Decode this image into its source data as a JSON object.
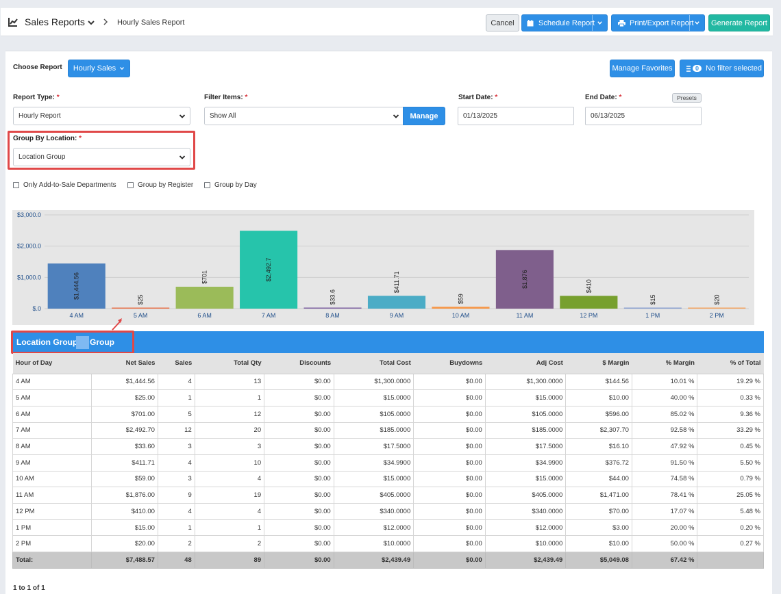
{
  "header": {
    "title": "Sales Reports",
    "breadcrumb": "Hourly Sales Report",
    "cancel_label": "Cancel",
    "schedule_label": "Schedule Report",
    "print_label": "Print/Export Report",
    "generate_label": "Generate Report"
  },
  "toolbar": {
    "choose_label": "Choose Report",
    "report_button": "Hourly Sales",
    "favorites_label": "Manage Favorites",
    "filter_count": "0",
    "filter_label": "No filter selected"
  },
  "form": {
    "report_type_label": "Report Type:",
    "report_type_value": "Hourly Report",
    "filter_items_label": "Filter Items:",
    "filter_items_value": "Show All",
    "manage_label": "Manage",
    "start_date_label": "Start Date:",
    "start_date_value": "01/13/2025",
    "end_date_label": "End Date:",
    "end_date_value": "06/13/2025",
    "presets_label": "Presets",
    "group_by_label": "Group By Location:",
    "group_by_value": "Location Group",
    "required_mark": "*",
    "checkboxes": [
      "Only Add-to-Sale Departments",
      "Group by Register",
      "Group by Day"
    ]
  },
  "colors": {
    "accent": "#2e8fe6",
    "generate": "#22b8a2",
    "highlight": "#e04848"
  },
  "chart_data": {
    "type": "bar",
    "categories": [
      "4 AM",
      "5 AM",
      "6 AM",
      "7 AM",
      "8 AM",
      "9 AM",
      "10 AM",
      "11 AM",
      "12 PM",
      "1 PM",
      "2 PM"
    ],
    "values": [
      1444.56,
      25,
      701,
      2492.7,
      33.6,
      411.71,
      59,
      1876,
      410,
      15,
      20
    ],
    "data_labels": [
      "$1,444.56",
      "$25",
      "$701",
      "$2,492.7",
      "$33.6",
      "$411.71",
      "$59",
      "$1,876",
      "$410",
      "$15",
      "$20"
    ],
    "colors": [
      "#4f81bd",
      "#e8734a",
      "#9bbb59",
      "#26c4ab",
      "#8064a2",
      "#4bacc6",
      "#f79646",
      "#7f5f8c",
      "#77a02e",
      "#8aa0d0",
      "#f4a460"
    ],
    "y_ticks": [
      "$.0",
      "$1,000.0",
      "$2,000.0",
      "$3,000.0"
    ],
    "ylim": [
      0,
      3000
    ],
    "grid": true,
    "title": "",
    "xlabel": "",
    "ylabel": ""
  },
  "group": {
    "label": "Location Group:",
    "name": "Group"
  },
  "table": {
    "columns": [
      "Hour of Day",
      "Net Sales",
      "Sales",
      "Total Qty",
      "Discounts",
      "Total Cost",
      "Buydowns",
      "Adj Cost",
      "$ Margin",
      "% Margin",
      "% of Total"
    ],
    "rows": [
      [
        "4 AM",
        "$1,444.56",
        "4",
        "13",
        "$0.00",
        "$1,300.0000",
        "$0.00",
        "$1,300.0000",
        "$144.56",
        "10.01 %",
        "19.29 %"
      ],
      [
        "5 AM",
        "$25.00",
        "1",
        "1",
        "$0.00",
        "$15.0000",
        "$0.00",
        "$15.0000",
        "$10.00",
        "40.00 %",
        "0.33 %"
      ],
      [
        "6 AM",
        "$701.00",
        "5",
        "12",
        "$0.00",
        "$105.0000",
        "$0.00",
        "$105.0000",
        "$596.00",
        "85.02 %",
        "9.36 %"
      ],
      [
        "7 AM",
        "$2,492.70",
        "12",
        "20",
        "$0.00",
        "$185.0000",
        "$0.00",
        "$185.0000",
        "$2,307.70",
        "92.58 %",
        "33.29 %"
      ],
      [
        "8 AM",
        "$33.60",
        "3",
        "3",
        "$0.00",
        "$17.5000",
        "$0.00",
        "$17.5000",
        "$16.10",
        "47.92 %",
        "0.45 %"
      ],
      [
        "9 AM",
        "$411.71",
        "4",
        "10",
        "$0.00",
        "$34.9900",
        "$0.00",
        "$34.9900",
        "$376.72",
        "91.50 %",
        "5.50 %"
      ],
      [
        "10 AM",
        "$59.00",
        "3",
        "4",
        "$0.00",
        "$15.0000",
        "$0.00",
        "$15.0000",
        "$44.00",
        "74.58 %",
        "0.79 %"
      ],
      [
        "11 AM",
        "$1,876.00",
        "9",
        "19",
        "$0.00",
        "$405.0000",
        "$0.00",
        "$405.0000",
        "$1,471.00",
        "78.41 %",
        "25.05 %"
      ],
      [
        "12 PM",
        "$410.00",
        "4",
        "4",
        "$0.00",
        "$340.0000",
        "$0.00",
        "$340.0000",
        "$70.00",
        "17.07 %",
        "5.48 %"
      ],
      [
        "1 PM",
        "$15.00",
        "1",
        "1",
        "$0.00",
        "$12.0000",
        "$0.00",
        "$12.0000",
        "$3.00",
        "20.00 %",
        "0.20 %"
      ],
      [
        "2 PM",
        "$20.00",
        "2",
        "2",
        "$0.00",
        "$10.0000",
        "$0.00",
        "$10.0000",
        "$10.00",
        "50.00 %",
        "0.27 %"
      ]
    ],
    "total": [
      "Total:",
      "$7,488.57",
      "48",
      "89",
      "$0.00",
      "$2,439.49",
      "$0.00",
      "$2,439.49",
      "$5,049.08",
      "67.42 %",
      ""
    ]
  },
  "pager": "1 to 1 of 1"
}
